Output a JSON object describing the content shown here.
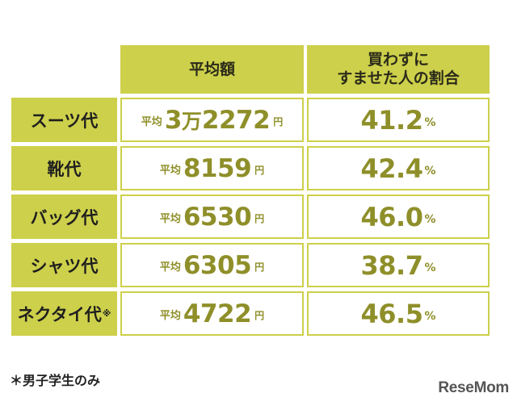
{
  "chart_data": {
    "type": "table",
    "columns": [
      "平均額",
      "買わずに すませた人の割合"
    ],
    "column_header_lines": [
      [
        "平均額"
      ],
      [
        "買わずに",
        "すませた人の割合"
      ]
    ],
    "rows": [
      {
        "label": "スーツ代",
        "mark": "",
        "avg_prefix": "平均",
        "avg_num": "3",
        "avg_man": "万",
        "avg_rest": "2272",
        "avg_unit": "円",
        "pct": "41.2",
        "pct_unit": "%"
      },
      {
        "label": "靴代",
        "mark": "",
        "avg_prefix": "平均",
        "avg_num": "8159",
        "avg_man": "",
        "avg_rest": "",
        "avg_unit": "円",
        "pct": "42.4",
        "pct_unit": "%"
      },
      {
        "label": "バッグ代",
        "mark": "",
        "avg_prefix": "平均",
        "avg_num": "6530",
        "avg_man": "",
        "avg_rest": "",
        "avg_unit": "円",
        "pct": "46.0",
        "pct_unit": "%"
      },
      {
        "label": "シャツ代",
        "mark": "",
        "avg_prefix": "平均",
        "avg_num": "6305",
        "avg_man": "",
        "avg_rest": "",
        "avg_unit": "円",
        "pct": "38.7",
        "pct_unit": "%"
      },
      {
        "label": "ネクタイ代",
        "mark": "※",
        "avg_prefix": "平均",
        "avg_num": "4722",
        "avg_man": "",
        "avg_rest": "",
        "avg_unit": "円",
        "pct": "46.5",
        "pct_unit": "%"
      }
    ],
    "footnote": "＊男子学生のみ"
  },
  "brand": {
    "logo_text": "ReseMom"
  },
  "colors": {
    "header_bg": "#cdd04a",
    "value_text": "#8f8f2a",
    "border": "#cdd04a"
  }
}
